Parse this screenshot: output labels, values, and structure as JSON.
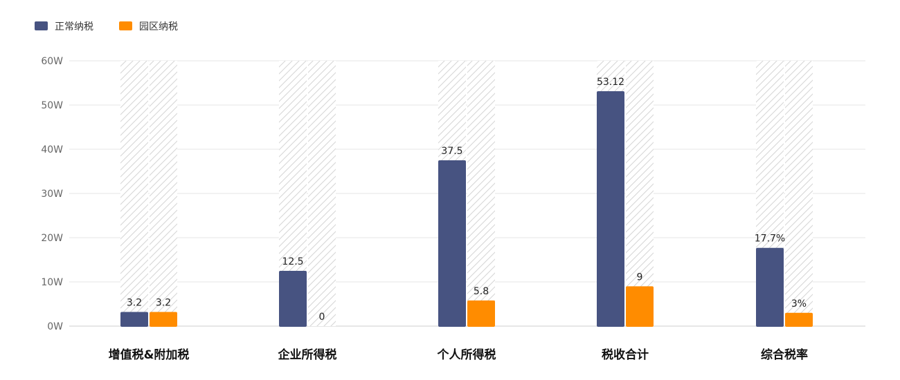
{
  "chart_data": {
    "type": "bar",
    "categories": [
      "增值税&附加税",
      "企业所得税",
      "个人所得税",
      "税收合计",
      "综合税率"
    ],
    "series": [
      {
        "name": "正常纳税",
        "color": "#475381",
        "values": [
          3.2,
          12.5,
          37.5,
          53.12,
          17.7
        ],
        "labels": [
          "3.2",
          "12.5",
          "37.5",
          "53.12",
          "17.7%"
        ]
      },
      {
        "name": "园区纳税",
        "color": "#FF8C00",
        "values": [
          3.2,
          0,
          5.8,
          9,
          3
        ],
        "labels": [
          "3.2",
          "0",
          "5.8",
          "9",
          "3%"
        ]
      }
    ],
    "ylim": [
      0,
      60
    ],
    "yticks": [
      0,
      10,
      20,
      30,
      40,
      50,
      60
    ],
    "ytick_labels": [
      "0W",
      "10W",
      "20W",
      "30W",
      "40W",
      "50W",
      "60W"
    ],
    "grid": true,
    "legend_position": "top-left",
    "background_bars": "hatched full-height bar behind each bar"
  }
}
